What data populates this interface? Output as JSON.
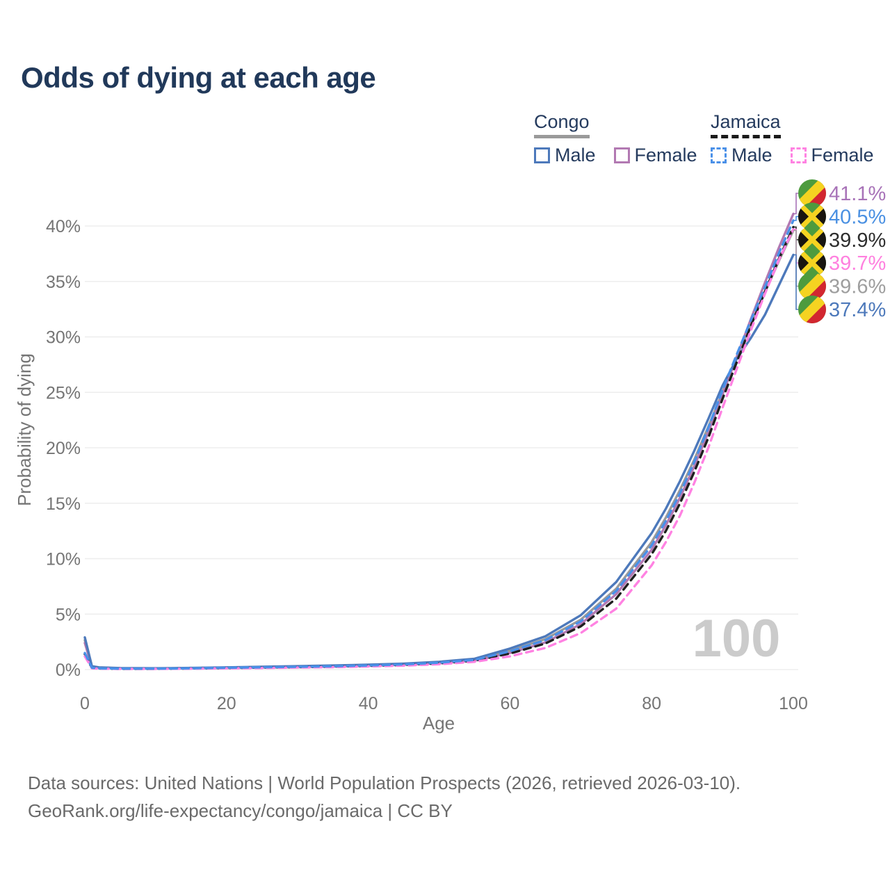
{
  "page": {
    "title": "Odds of dying at each age",
    "background": "#ffffff"
  },
  "legend": {
    "groups": [
      {
        "id": "congo",
        "label": "Congo",
        "line_style": "solid",
        "line_color": "#9a9a9a",
        "items": [
          {
            "label": "Male",
            "color": "#4d79bb",
            "style": "solid"
          },
          {
            "label": "Female",
            "color": "#b279b2",
            "style": "solid"
          }
        ]
      },
      {
        "id": "jamaica",
        "label": "Jamaica",
        "line_style": "dashed",
        "line_color": "#1a1a1a",
        "items": [
          {
            "label": "Male",
            "color": "#4a90e8",
            "style": "dashed"
          },
          {
            "label": "Female",
            "color": "#ff82e2",
            "style": "dashed"
          }
        ]
      }
    ]
  },
  "chart_data": {
    "type": "line",
    "title": "Odds of dying at each age",
    "xlabel": "Age",
    "ylabel": "Probability of dying",
    "xlim": [
      0,
      100
    ],
    "ylim": [
      0,
      43
    ],
    "grid": "horizontal",
    "legend_position": "top-right",
    "hover_age": "100",
    "x_ticks": [
      0,
      20,
      40,
      60,
      80,
      100
    ],
    "y_ticks": [
      0,
      5,
      10,
      15,
      20,
      25,
      30,
      35,
      40
    ],
    "y_tick_suffix": "%",
    "ages": [
      0,
      1,
      2,
      5,
      10,
      15,
      20,
      25,
      30,
      35,
      40,
      45,
      50,
      55,
      60,
      65,
      70,
      75,
      80,
      82,
      84,
      86,
      88,
      90,
      92,
      94,
      96,
      98,
      100
    ],
    "series": [
      {
        "id": "congo-both",
        "name": "Congo Both sexes",
        "country": "Congo",
        "sex": "Both",
        "color": "#9a9a9a",
        "dash": "solid",
        "values": [
          2.65,
          0.27,
          0.18,
          0.12,
          0.1,
          0.13,
          0.17,
          0.22,
          0.27,
          0.32,
          0.39,
          0.49,
          0.64,
          0.9,
          1.7,
          2.75,
          4.5,
          7.3,
          11.5,
          13.7,
          16.2,
          18.9,
          21.9,
          25.0,
          28.1,
          31.1,
          34.0,
          36.9,
          39.6
        ]
      },
      {
        "id": "congo-female",
        "name": "Congo Female",
        "country": "Congo",
        "sex": "Female",
        "color": "#b279b2",
        "dash": "solid",
        "values": [
          2.4,
          0.25,
          0.16,
          0.11,
          0.09,
          0.11,
          0.14,
          0.18,
          0.22,
          0.27,
          0.33,
          0.43,
          0.57,
          0.81,
          1.5,
          2.45,
          4.1,
          6.8,
          10.8,
          13.0,
          15.5,
          18.3,
          21.4,
          24.8,
          28.2,
          31.6,
          34.9,
          38.1,
          41.1
        ]
      },
      {
        "id": "congo-male",
        "name": "Congo Male",
        "country": "Congo",
        "sex": "Male",
        "color": "#4d79bb",
        "dash": "solid",
        "values": [
          2.9,
          0.3,
          0.2,
          0.14,
          0.12,
          0.15,
          0.2,
          0.26,
          0.31,
          0.37,
          0.44,
          0.54,
          0.7,
          0.98,
          1.9,
          3.0,
          4.9,
          7.9,
          12.3,
          14.5,
          17.0,
          19.7,
          22.6,
          25.6,
          28.0,
          29.9,
          32.0,
          34.7,
          37.4
        ]
      },
      {
        "id": "jamaica-both",
        "name": "Jamaica Both sexes",
        "country": "Jamaica",
        "sex": "Both",
        "color": "#1f1f1f",
        "dash": "dashed",
        "values": [
          1.4,
          0.14,
          0.1,
          0.07,
          0.07,
          0.1,
          0.14,
          0.18,
          0.22,
          0.27,
          0.33,
          0.42,
          0.56,
          0.8,
          1.45,
          2.35,
          3.9,
          6.4,
          10.4,
          12.5,
          15.0,
          17.8,
          20.9,
          24.4,
          27.7,
          31.0,
          34.1,
          37.1,
          39.9
        ]
      },
      {
        "id": "jamaica-female",
        "name": "Jamaica Female",
        "country": "Jamaica",
        "sex": "Female",
        "color": "#ff82e2",
        "dash": "dashed",
        "values": [
          1.2,
          0.12,
          0.08,
          0.06,
          0.06,
          0.08,
          0.11,
          0.14,
          0.18,
          0.22,
          0.28,
          0.36,
          0.48,
          0.7,
          1.2,
          1.95,
          3.3,
          5.5,
          9.4,
          11.5,
          13.9,
          16.8,
          20.0,
          23.6,
          27.1,
          30.6,
          33.9,
          37.0,
          39.7
        ]
      },
      {
        "id": "jamaica-male",
        "name": "Jamaica Male",
        "country": "Jamaica",
        "sex": "Male",
        "color": "#4a90e8",
        "dash": "dashed",
        "values": [
          1.5,
          0.16,
          0.11,
          0.08,
          0.08,
          0.11,
          0.16,
          0.21,
          0.25,
          0.3,
          0.37,
          0.47,
          0.62,
          0.88,
          1.65,
          2.65,
          4.35,
          7.1,
          11.2,
          13.4,
          15.9,
          18.7,
          21.8,
          25.2,
          28.4,
          31.5,
          34.5,
          37.6,
          40.5
        ]
      }
    ],
    "end_labels": [
      {
        "series": "congo-female",
        "flag": "congo-flag",
        "label": "41.1%",
        "value": 41.1,
        "color": "#a873b8"
      },
      {
        "series": "jamaica-male",
        "flag": "jamaica-flag",
        "label": "40.5%",
        "value": 40.5,
        "color": "#4a90e2"
      },
      {
        "series": "jamaica-both",
        "flag": "jamaica-flag",
        "label": "39.9%",
        "value": 39.9,
        "color": "#2d2d2d"
      },
      {
        "series": "jamaica-female",
        "flag": "jamaica-flag",
        "label": "39.7%",
        "value": 39.7,
        "color": "#ff80df"
      },
      {
        "series": "congo-both",
        "flag": "congo-flag",
        "label": "39.6%",
        "value": 39.6,
        "color": "#9e9e9e"
      },
      {
        "series": "congo-male",
        "flag": "congo-flag",
        "label": "37.4%",
        "value": 37.4,
        "color": "#4d79bb"
      }
    ],
    "flag_colors": {
      "congo": {
        "green": "#4d9b3e",
        "yellow": "#f5d321",
        "red": "#d22730"
      },
      "jamaica": {
        "green": "#4d9b3e",
        "yellow": "#f5d321",
        "black": "#181510"
      }
    }
  },
  "footer": {
    "line1": "Data sources: United Nations | World Population Prospects (2026, retrieved 2026-03-10).",
    "line2": "GeoRank.org/life-expectancy/congo/jamaica | CC BY"
  }
}
